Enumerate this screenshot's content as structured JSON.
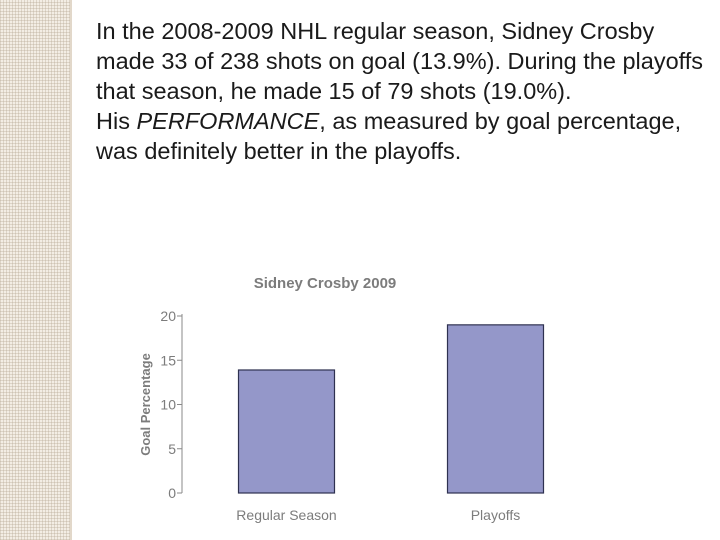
{
  "bullets": [
    {
      "marker": "",
      "text": "In the 2008-2009 NHL regular season, Sidney Crosby made 33 of 238 shots on goal (13.9%). During the playoffs that season, he made 15 of 79 shots (19.0%)."
    },
    {
      "marker": "",
      "pre": "His ",
      "emph": "PERFORMANCE",
      "post": ", as measured by goal percentage, was definitely better in the playoffs."
    }
  ],
  "chart_data": {
    "type": "bar",
    "title": "Sidney Crosby 2009",
    "xlabel": "",
    "ylabel": "Goal Percentage",
    "categories": [
      "Regular Season",
      "Playoffs"
    ],
    "values": [
      13.9,
      19.0
    ],
    "yticks": [
      "0",
      "5",
      "10",
      "15",
      "20"
    ],
    "ylim": [
      0,
      20
    ],
    "grid": false,
    "bar_color": "#9497c9",
    "bar_edge_color": "#2e3150",
    "axis_color": "#888888",
    "label_color": "#7c7c7c"
  }
}
